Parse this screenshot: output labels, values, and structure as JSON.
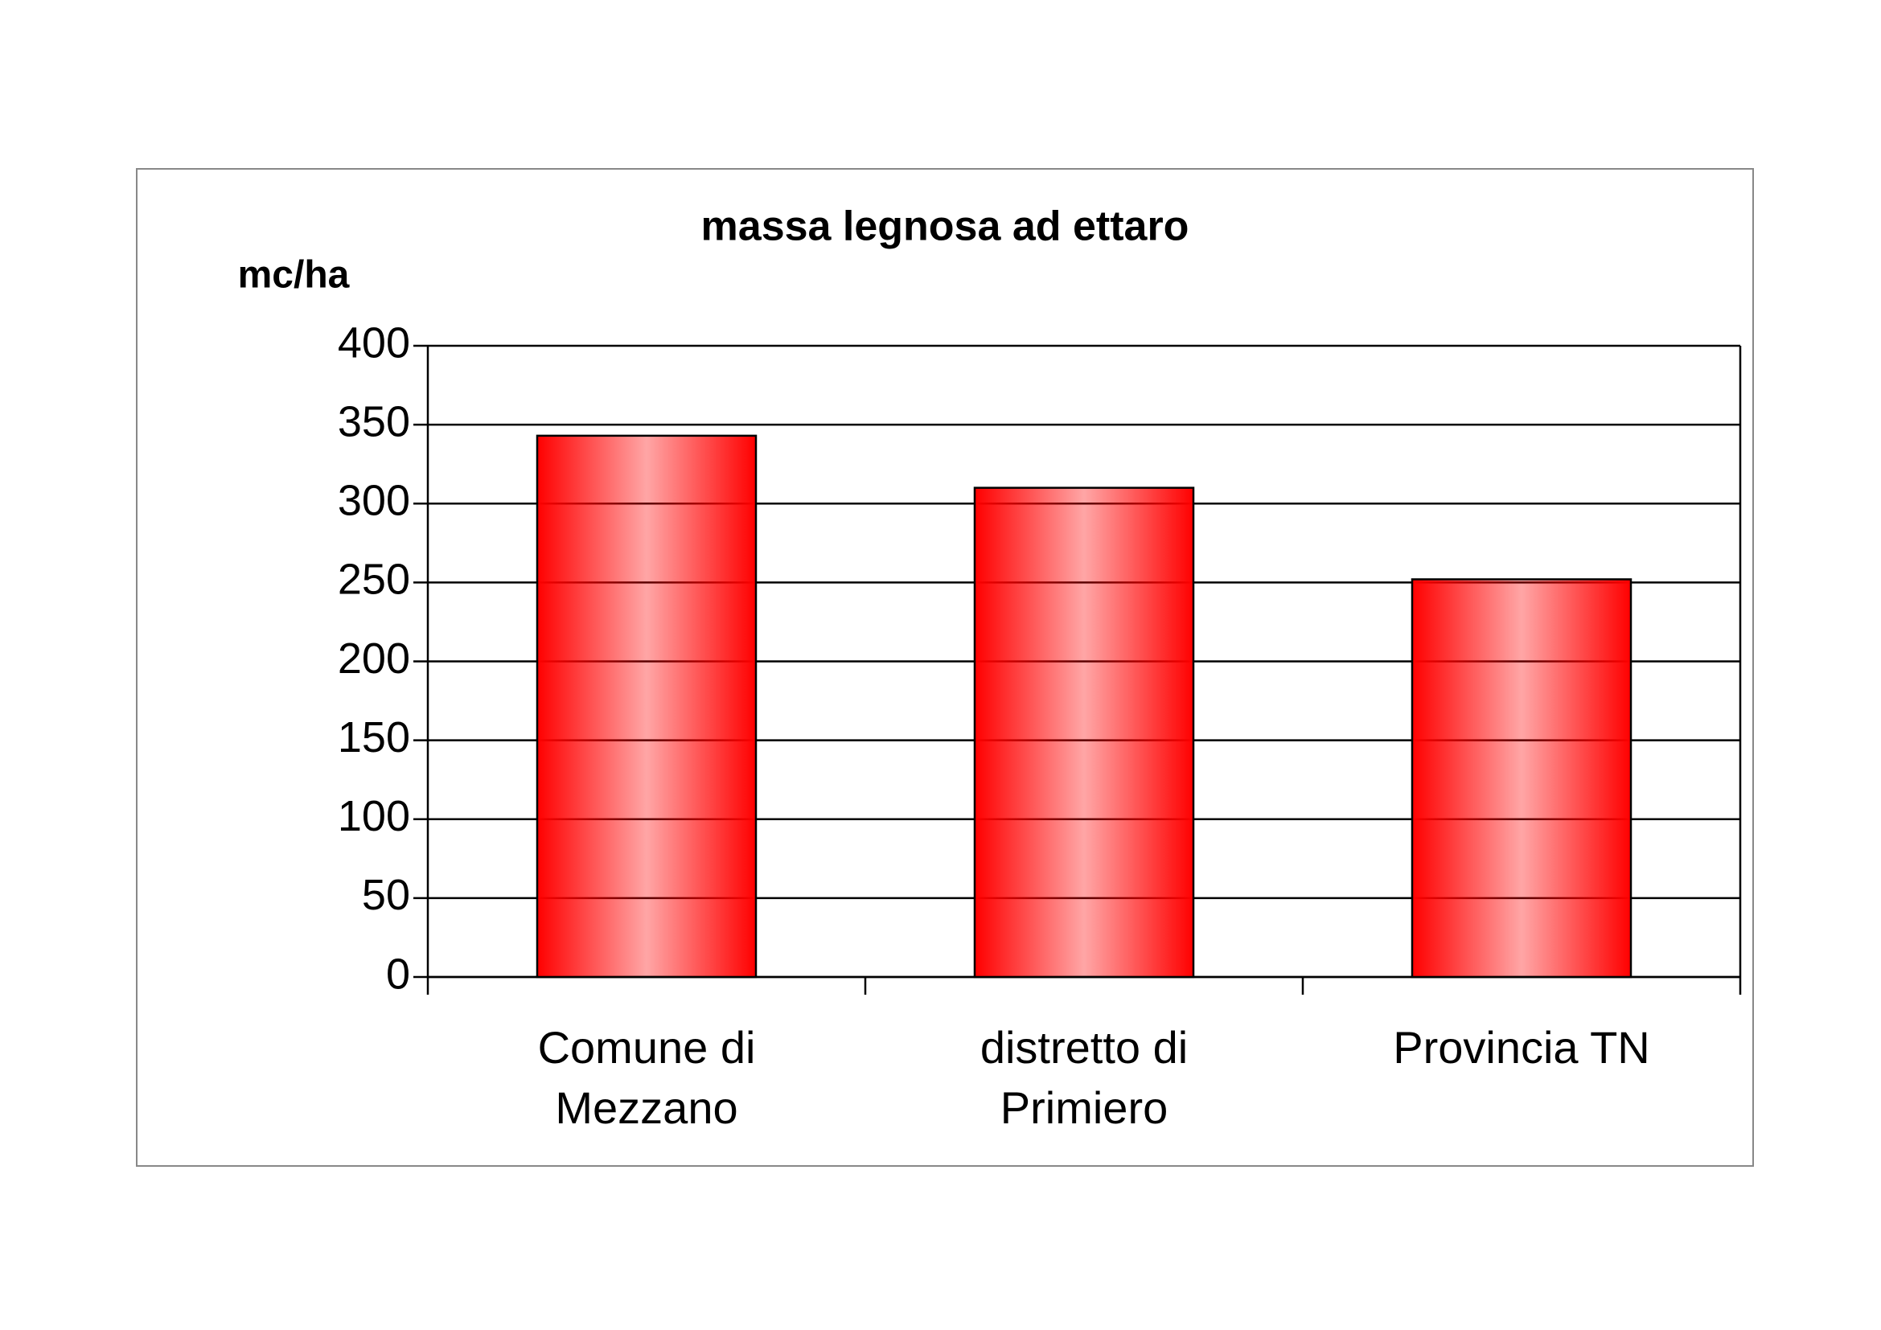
{
  "chart_data": {
    "type": "bar",
    "title": "massa legnosa ad ettaro",
    "y_label": "mc/ha",
    "categories": [
      "Comune di\nMezzano",
      "distretto di\nPrimiero",
      "Provincia TN"
    ],
    "values": [
      343,
      310,
      252
    ],
    "color": "#ff0000",
    "ylim": [
      0,
      400
    ],
    "yticks": [
      0,
      50,
      100,
      150,
      200,
      250,
      300,
      350,
      400
    ],
    "grid": true
  }
}
